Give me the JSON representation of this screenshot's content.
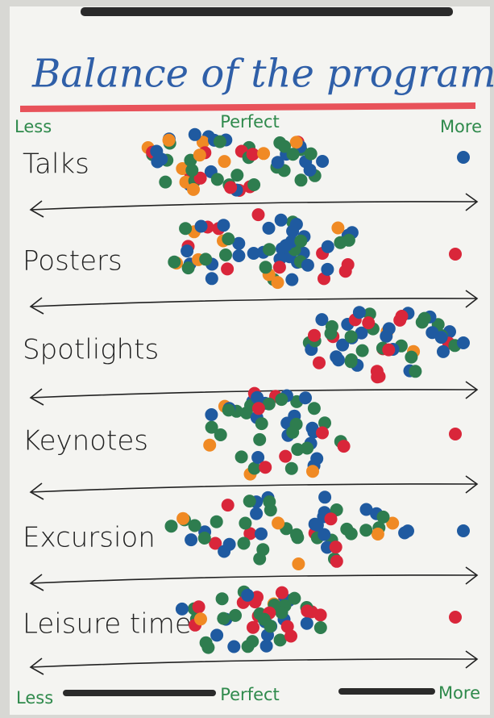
{
  "header": {
    "title": "Balance of the program"
  },
  "scale": {
    "left": "Less",
    "middle": "Perfect",
    "right": "More"
  },
  "rows": [
    {
      "label": "Talks"
    },
    {
      "label": "Posters"
    },
    {
      "label": "Spotlights"
    },
    {
      "label": "Keynotes"
    },
    {
      "label": "Excursion"
    },
    {
      "label": "Leisure time"
    }
  ],
  "footer": {
    "left": "Less",
    "middle": "Perfect",
    "right": "More"
  }
}
